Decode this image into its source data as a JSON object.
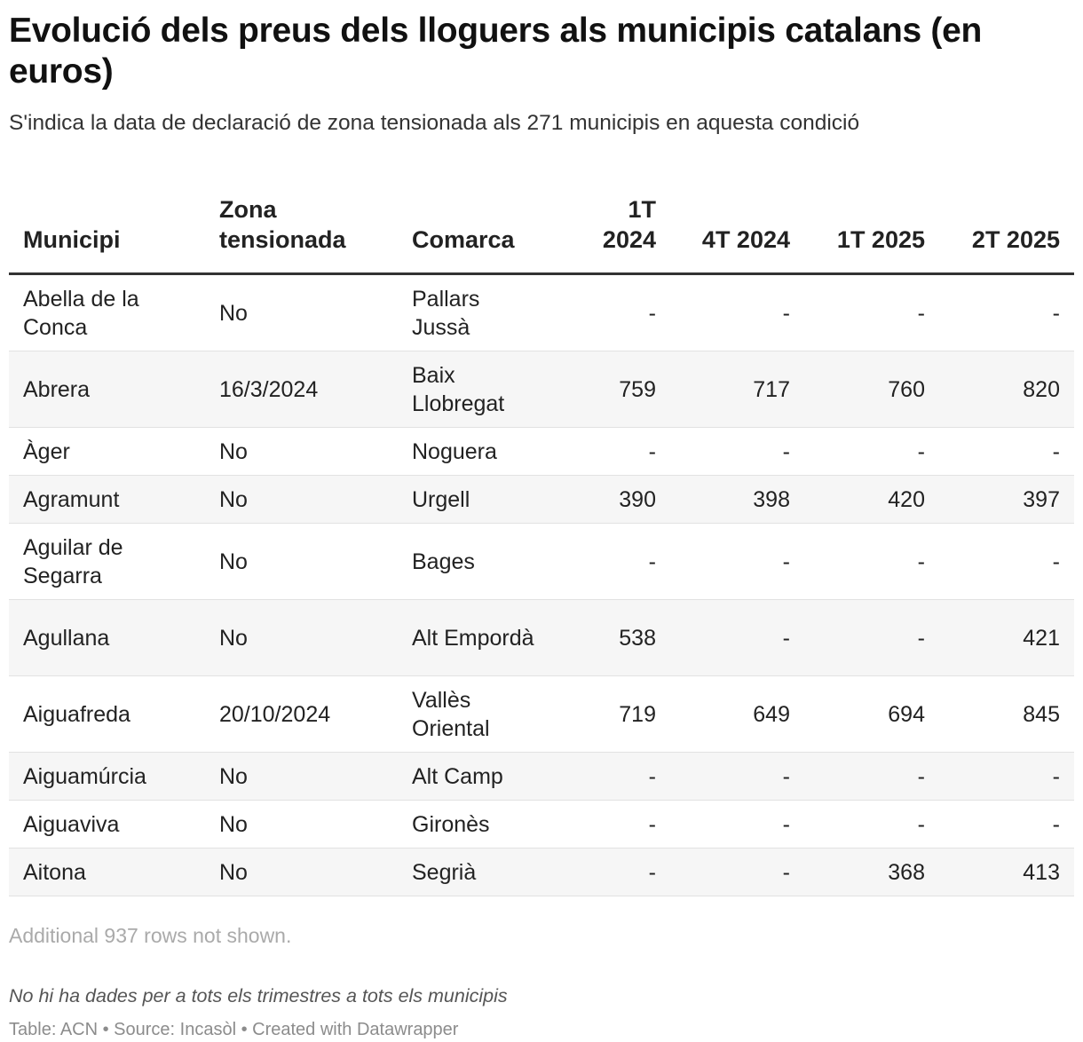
{
  "title": "Evolució dels preus dels lloguers als municipis catalans (en euros)",
  "subtitle": "S'indica la data de declaració de zona tensionada als 271 municipis en aquesta condició",
  "chart_data": {
    "type": "table",
    "columns": [
      "Municipi",
      "Zona tensionada",
      "Comarca",
      "1T 2024",
      "4T 2024",
      "1T 2025",
      "2T 2025"
    ],
    "rows": [
      [
        "Abella de la Conca",
        "No",
        "Pallars Jussà",
        "-",
        "-",
        "-",
        "-"
      ],
      [
        "Abrera",
        "16/3/2024",
        "Baix Llobregat",
        "759",
        "717",
        "760",
        "820"
      ],
      [
        "Àger",
        "No",
        "Noguera",
        "-",
        "-",
        "-",
        "-"
      ],
      [
        "Agramunt",
        "No",
        "Urgell",
        "390",
        "398",
        "420",
        "397"
      ],
      [
        "Aguilar de Segarra",
        "No",
        "Bages",
        "-",
        "-",
        "-",
        "-"
      ],
      [
        "Agullana",
        "No",
        "Alt Empordà",
        "538",
        "-",
        "-",
        "421"
      ],
      [
        "Aiguafreda",
        "20/10/2024",
        "Vallès Oriental",
        "719",
        "649",
        "694",
        "845"
      ],
      [
        "Aiguamúrcia",
        "No",
        "Alt Camp",
        "-",
        "-",
        "-",
        "-"
      ],
      [
        "Aiguaviva",
        "No",
        "Gironès",
        "-",
        "-",
        "-",
        "-"
      ],
      [
        "Aitona",
        "No",
        "Segrià",
        "-",
        "-",
        "368",
        "413"
      ]
    ]
  },
  "rows_note": "Additional 937 rows not shown.",
  "note": "No hi ha dades per a tots els trimestres a tots els municipis",
  "footer": "Table: ACN • Source: Incasòl • Created with Datawrapper"
}
